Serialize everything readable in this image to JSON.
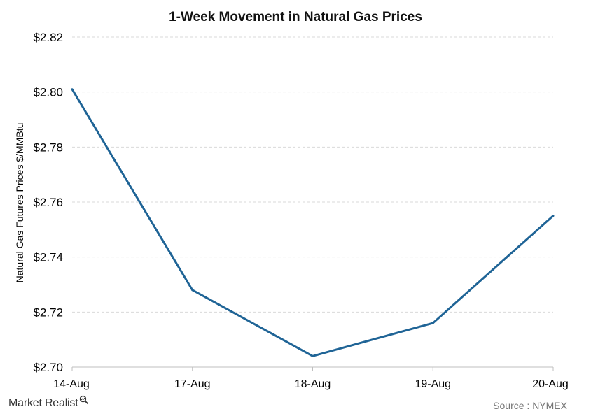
{
  "chart_data": {
    "type": "line",
    "title": "1-Week Movement in Natural Gas Prices",
    "ylabel": "Natural Gas Futures Prices $/MMBtu",
    "xlabel": "",
    "categories": [
      "14-Aug",
      "17-Aug",
      "18-Aug",
      "19-Aug",
      "20-Aug"
    ],
    "series": [
      {
        "values": [
          2.801,
          2.728,
          2.704,
          2.716,
          2.755
        ]
      }
    ],
    "ylim": [
      2.7,
      2.82
    ],
    "yticks": [
      "$2.70",
      "$2.72",
      "$2.74",
      "$2.76",
      "$2.78",
      "$2.80",
      "$2.82"
    ],
    "grid": true,
    "line_color": "#1f6496",
    "grid_color": "#d9d9d9"
  },
  "footer": {
    "brand": "Market Realist",
    "source": "Source : NYMEX"
  }
}
